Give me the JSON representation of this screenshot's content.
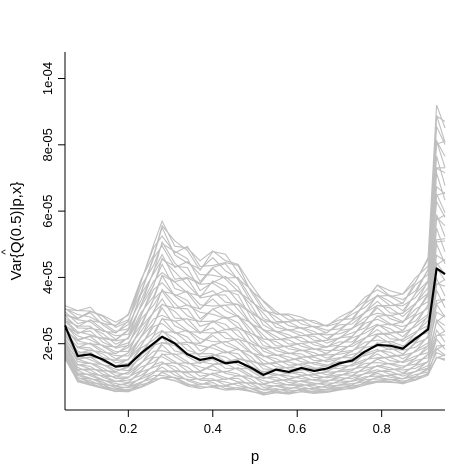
{
  "chart_data": {
    "type": "line",
    "title": "",
    "xlabel": "p",
    "ylabel": "Var{Q(0.5)|p,x}",
    "ylabel_hat": "^",
    "xlim": [
      0.05,
      0.95
    ],
    "ylim": [
      0,
      0.000108
    ],
    "xticks": [
      0.2,
      0.4,
      0.6,
      0.8
    ],
    "xtick_labels": [
      "0.2",
      "0.4",
      "0.6",
      "0.8"
    ],
    "yticks": [
      2e-05,
      4e-05,
      6e-05,
      8e-05,
      0.0001
    ],
    "ytick_labels": [
      "2e-05",
      "4e-05",
      "6e-05",
      "8e-05",
      "1e-04"
    ],
    "grid": false,
    "legend": "none",
    "colors": {
      "mean": "#000000",
      "bundle": "#bfbfbf",
      "axis": "#000000"
    },
    "x": [
      0.05,
      0.08,
      0.11,
      0.14,
      0.17,
      0.2,
      0.23,
      0.26,
      0.28,
      0.31,
      0.34,
      0.37,
      0.4,
      0.43,
      0.46,
      0.49,
      0.52,
      0.55,
      0.58,
      0.61,
      0.64,
      0.67,
      0.7,
      0.73,
      0.76,
      0.79,
      0.82,
      0.85,
      0.88,
      0.91,
      0.93,
      0.95
    ],
    "mean": [
      2.55e-05,
      1.63e-05,
      1.68e-05,
      1.52e-05,
      1.31e-05,
      1.35e-05,
      1.71e-05,
      2.01e-05,
      2.21e-05,
      2.01e-05,
      1.68e-05,
      1.51e-05,
      1.58e-05,
      1.41e-05,
      1.46e-05,
      1.28e-05,
      1.06e-05,
      1.22e-05,
      1.15e-05,
      1.27e-05,
      1.18e-05,
      1.25e-05,
      1.41e-05,
      1.49e-05,
      1.76e-05,
      1.96e-05,
      1.94e-05,
      1.85e-05,
      2.15e-05,
      2.43e-05,
      4.27e-05,
      4.1e-05
    ],
    "bundle_low": [
      1.55e-05,
      8.5e-06,
      7.5e-06,
      6.5e-06,
      5.5e-06,
      5.5e-06,
      6.8e-06,
      8.5e-06,
      9.5e-06,
      8.8e-06,
      7.2e-06,
      6.5e-06,
      6.8e-06,
      6e-06,
      6.2e-06,
      5.5e-06,
      4.5e-06,
      5.2e-06,
      4.8e-06,
      5.4e-06,
      5e-06,
      5.3e-06,
      6e-06,
      6.4e-06,
      7.5e-06,
      8.4e-06,
      8.3e-06,
      7.9e-06,
      9e-06,
      1.05e-05,
      1.55e-05,
      1.5e-05
    ],
    "bundle_high": [
      3.15e-05,
      3e-05,
      3.1e-05,
      2.85e-05,
      2.65e-05,
      2.9e-05,
      4e-05,
      5e-05,
      5.7e-05,
      5.1e-05,
      5e-05,
      4.5e-05,
      4.8e-05,
      4.7e-05,
      4.4e-05,
      3.8e-05,
      3.3e-05,
      3e-05,
      2.9e-05,
      2.8e-05,
      2.7e-05,
      2.6e-05,
      2.8e-05,
      3e-05,
      3.4e-05,
      3.8e-05,
      3.6e-05,
      3.5e-05,
      4e-05,
      4.6e-05,
      9.2e-05,
      8.7e-05
    ],
    "bundle_count": 48
  }
}
